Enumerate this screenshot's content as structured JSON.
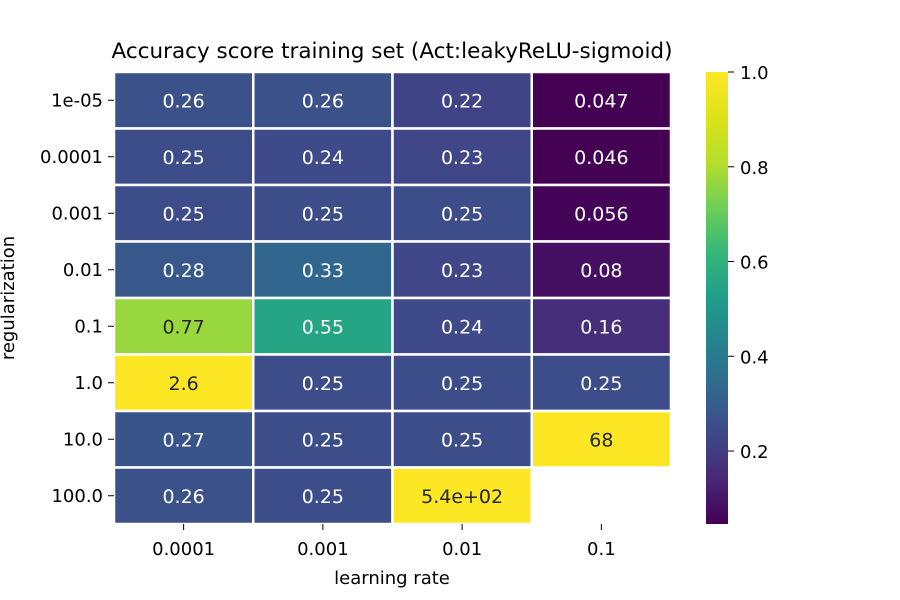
{
  "chart_data": {
    "type": "heatmap",
    "title": "Accuracy score training set (Act:leakyReLU-sigmoid)",
    "xlabel": "learning rate",
    "ylabel": "regularization",
    "x_categories": [
      "0.0001",
      "0.001",
      "0.01",
      "0.1"
    ],
    "y_categories": [
      "1e-05",
      "0.0001",
      "0.001",
      "0.01",
      "0.1",
      "1.0",
      "10.0",
      "100.0"
    ],
    "values": [
      [
        0.26,
        0.26,
        0.22,
        0.047
      ],
      [
        0.25,
        0.24,
        0.23,
        0.046
      ],
      [
        0.25,
        0.25,
        0.25,
        0.056
      ],
      [
        0.28,
        0.33,
        0.23,
        0.08
      ],
      [
        0.77,
        0.55,
        0.24,
        0.16
      ],
      [
        2.6,
        0.25,
        0.25,
        0.25
      ],
      [
        0.27,
        0.25,
        0.25,
        68
      ],
      [
        0.26,
        0.25,
        540,
        null
      ]
    ],
    "cell_labels": [
      [
        "0.26",
        "0.26",
        "0.22",
        "0.047"
      ],
      [
        "0.25",
        "0.24",
        "0.23",
        "0.046"
      ],
      [
        "0.25",
        "0.25",
        "0.25",
        "0.056"
      ],
      [
        "0.28",
        "0.33",
        "0.23",
        "0.08"
      ],
      [
        "0.77",
        "0.55",
        "0.24",
        "0.16"
      ],
      [
        "2.6",
        "0.25",
        "0.25",
        "0.25"
      ],
      [
        "0.27",
        "0.25",
        "0.25",
        "68"
      ],
      [
        "0.26",
        "0.25",
        "5.4e+02",
        ""
      ]
    ],
    "colorscale": "viridis",
    "color_range": [
      0.046,
      1.0
    ],
    "colorbar_ticks": [
      "0.2",
      "0.4",
      "0.6",
      "0.8",
      "1.0"
    ],
    "colorbar_tick_values": [
      0.2,
      0.4,
      0.6,
      0.8,
      1.0
    ],
    "legend": "right"
  }
}
